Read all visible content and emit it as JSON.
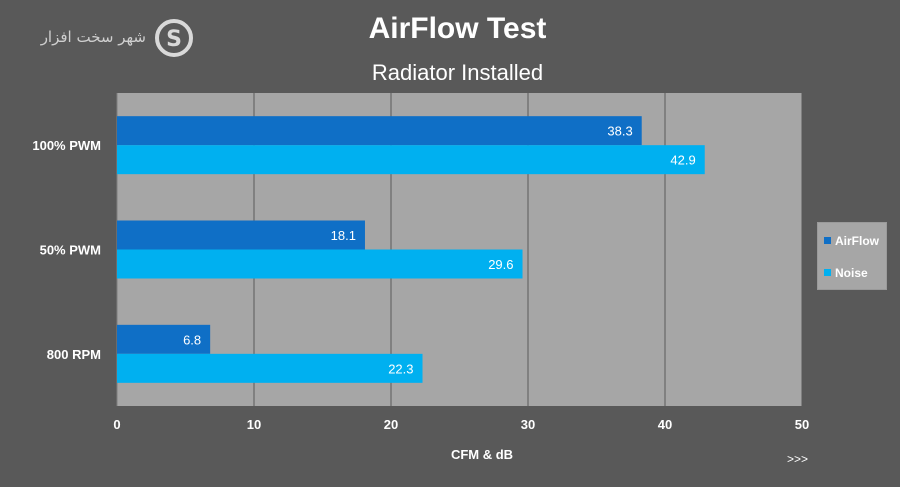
{
  "logo": {
    "text": "شهر سخت افزار",
    "letter": "S"
  },
  "chart_data": {
    "type": "bar",
    "orientation": "horizontal",
    "title": "AirFlow Test",
    "subtitle": "Radiator Installed",
    "categories": [
      "100% PWM",
      "50% PWM",
      "800 RPM"
    ],
    "series": [
      {
        "name": "AirFlow",
        "values": [
          38.3,
          18.1,
          6.8
        ],
        "color": "#0f6fc6"
      },
      {
        "name": "Noise",
        "values": [
          42.9,
          29.6,
          22.3
        ],
        "color": "#00b0f0"
      }
    ],
    "xlabel": "CFM & dB",
    "ylabel": "",
    "xlim": [
      0,
      50
    ],
    "xticks": [
      0,
      10,
      20,
      30,
      40,
      50
    ],
    "grid": true,
    "legend": "right",
    "plot_background": "#a6a6a6",
    "gridline_color": "#595959"
  },
  "footer": {
    "more_label": ">>>"
  }
}
